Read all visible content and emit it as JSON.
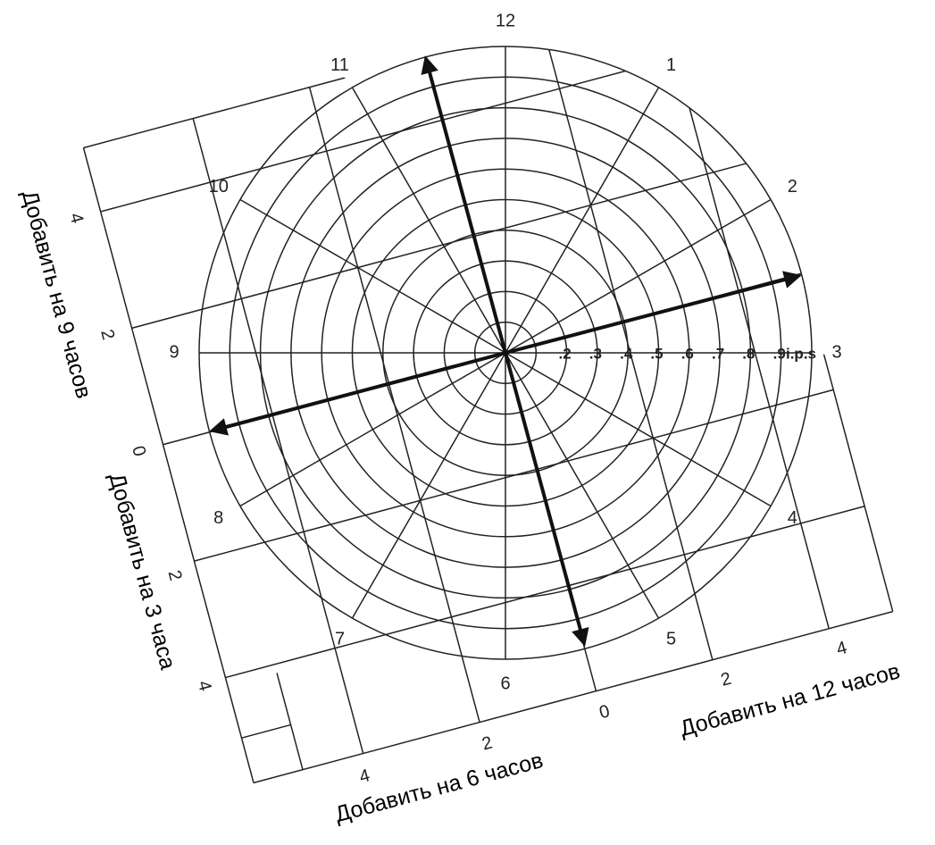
{
  "hours": [
    "12",
    "1",
    "2",
    "3",
    "4",
    "5",
    "6",
    "7",
    "8",
    "9",
    "10",
    "11"
  ],
  "rings": [
    ".2",
    ".3",
    ".4",
    ".5",
    ".6",
    ".7",
    ".8",
    ".9",
    "i.p.s"
  ],
  "left_scale": [
    "4",
    "2",
    "0",
    "2",
    "4"
  ],
  "bottom_scale": [
    "4",
    "2",
    "0",
    "2",
    "4"
  ],
  "labels": {
    "add_9": "Добавить на 9 часов",
    "add_3": "Добавить на 3 часа",
    "add_12": "Добавить на 12 часов",
    "add_6": "Добавить на 6 часов"
  }
}
